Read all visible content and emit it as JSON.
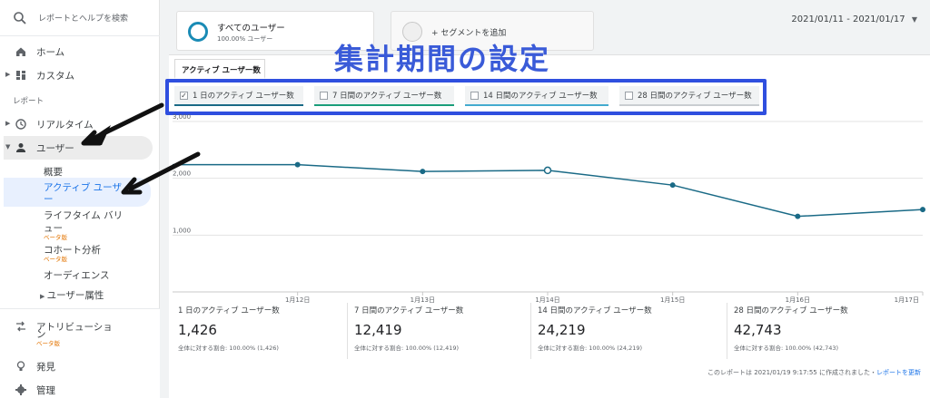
{
  "sidebar": {
    "search_placeholder": "レポートとヘルプを検索",
    "nav": [
      {
        "label": "ホーム",
        "icon": "home-icon"
      },
      {
        "label": "カスタム",
        "icon": "dashboard-icon"
      }
    ],
    "section_label": "レポート",
    "realtime_label": "リアルタイム",
    "users_label": "ユーザー",
    "sub_items": {
      "overview": "概要",
      "active_users_line1": "アクティブ ユーザ",
      "active_users_line2": "ー",
      "lifetime_line1": "ライフタイム バリ",
      "lifetime_line2": "ュー",
      "lifetime_beta": "ベータ版",
      "cohort": "コホート分析",
      "cohort_beta": "ベータ版",
      "audience": "オーディエンス",
      "user_attributes": "ユーザー属性"
    },
    "bottom": {
      "attribution_line1": "アトリビューショ",
      "attribution_line2": "ン",
      "attribution_beta": "ベータ版",
      "discover": "発見",
      "admin": "管理"
    }
  },
  "header": {
    "segment_title": "すべてのユーザー",
    "segment_sub": "100.00% ユーザー",
    "add_segment": "+ セグメントを追加",
    "date_range": "2021/01/11 - 2021/01/17"
  },
  "overlay_title": "集計期間の設定",
  "tab_label": "アクティブ ユーザー数",
  "metric_toggles": [
    {
      "label": "1 日のアクティブ ユーザー数",
      "checked": true,
      "color": "#1a6a86"
    },
    {
      "label": "7 日間のアクティブ ユーザー数",
      "checked": false,
      "color": "#1a9e7a"
    },
    {
      "label": "14 日間のアクティブ ユーザー数",
      "checked": false,
      "color": "#44aacf"
    },
    {
      "label": "28 日間のアクティブ ユーザー数",
      "checked": false,
      "color": "#c9cdd1"
    }
  ],
  "chart_data": {
    "type": "line",
    "x": [
      "1月11日",
      "1月12日",
      "1月13日",
      "1月14日",
      "1月15日",
      "1月16日",
      "1月17日"
    ],
    "x_tick_labels": [
      "1月12日",
      "1月13日",
      "1月14日",
      "1月15日",
      "1月16日",
      "1月17日"
    ],
    "y_tick_labels": [
      "3,000",
      "2,000",
      "1,000"
    ],
    "ylim": [
      0,
      3000
    ],
    "series": [
      {
        "name": "1 日のアクティブ ユーザー数",
        "values": [
          2240,
          2240,
          2120,
          2140,
          1880,
          1330,
          1450
        ],
        "color": "#1a6a86"
      }
    ],
    "grid": true
  },
  "stats": [
    {
      "label": "1 日のアクティブ ユーザー数",
      "value": "1,426",
      "sub": "全体に対する割合: 100.00% (1,426)"
    },
    {
      "label": "7 日間のアクティブ ユーザー数",
      "value": "12,419",
      "sub": "全体に対する割合: 100.00% (12,419)"
    },
    {
      "label": "14 日間のアクティブ ユーザー数",
      "value": "24,219",
      "sub": "全体に対する割合: 100.00% (24,219)"
    },
    {
      "label": "28 日間のアクティブ ユーザー数",
      "value": "42,743",
      "sub": "全体に対する割合: 100.00% (42,743)"
    }
  ],
  "footer": {
    "note": "このレポートは 2021/01/19 9:17:55 に作成されました・",
    "refresh_link": "レポートを更新"
  }
}
